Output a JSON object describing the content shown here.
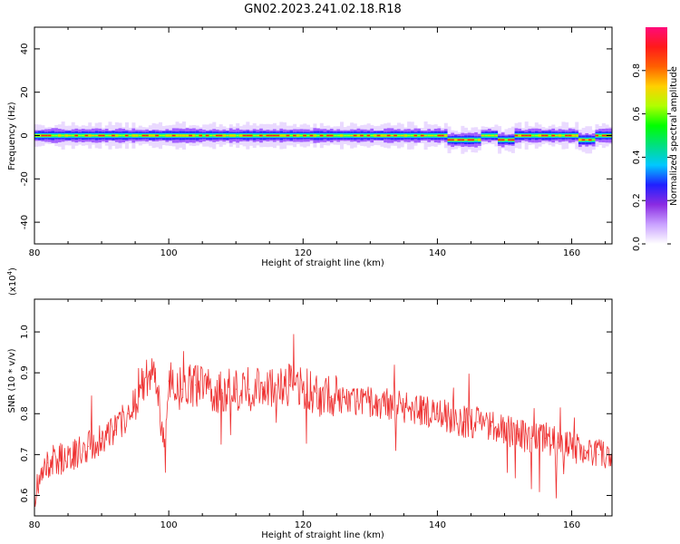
{
  "figure_title": "GN02.2023.241.02.18.R18",
  "chart_data": [
    {
      "type": "heatmap",
      "xlabel": "Height of straight line (km)",
      "ylabel": "Frequency (Hz)",
      "xlim": [
        80,
        166
      ],
      "ylim": [
        -50,
        50
      ],
      "x_ticks": [
        80,
        100,
        120,
        140,
        160
      ],
      "y_ticks": [
        -40,
        -20,
        0,
        20,
        40
      ],
      "colorbar": {
        "label": "Normalized spectral amplitude",
        "range": [
          0.0,
          1.0
        ],
        "ticks": [
          "0.0",
          "0.2",
          "0.4",
          "0.6",
          "0.8"
        ],
        "colormap": [
          "#ffffff",
          "#c9a0ff",
          "#8a2be2",
          "#2020ff",
          "#00c8ff",
          "#00e080",
          "#00ff00",
          "#b0ff00",
          "#ffd000",
          "#ff6000",
          "#ff1a1a",
          "#ff0a7a"
        ]
      },
      "dominant_frequency_hz": 0,
      "notch_segments_hz": [
        {
          "x_start": 141.5,
          "x_end": 146,
          "freq": -2
        },
        {
          "x_start": 149,
          "x_end": 151,
          "freq": -2
        },
        {
          "x_start": 161,
          "x_end": 163,
          "freq": -2
        }
      ]
    },
    {
      "type": "line",
      "xlabel": "Height of straight line (km)",
      "ylabel": "SNR (10 * v/v)",
      "y_multiplier": "(x10",
      "y_multiplier_exp": "4",
      "y_multiplier_close": ")",
      "xlim": [
        80,
        166
      ],
      "ylim": [
        0.55,
        1.08
      ],
      "x_ticks": [
        80,
        100,
        120,
        140,
        160
      ],
      "y_ticks": [
        "0.6",
        "0.7",
        "0.8",
        "0.9",
        "1.0"
      ],
      "series": [
        {
          "color": "#ee3030",
          "x": [
            80,
            82,
            84,
            86,
            88,
            90,
            92,
            94,
            96,
            98,
            99.5,
            100,
            102,
            104,
            106,
            108,
            110,
            112,
            114,
            116,
            118,
            120,
            122,
            124,
            126,
            128,
            130,
            132,
            134,
            136,
            138,
            140,
            142,
            144,
            146,
            148,
            150,
            152,
            154,
            156,
            158,
            160,
            162,
            164,
            166
          ],
          "values": [
            0.6,
            0.68,
            0.69,
            0.7,
            0.72,
            0.74,
            0.76,
            0.8,
            0.87,
            0.9,
            0.7,
            0.88,
            0.86,
            0.87,
            0.86,
            0.85,
            0.86,
            0.86,
            0.86,
            0.87,
            0.87,
            0.86,
            0.85,
            0.84,
            0.84,
            0.83,
            0.83,
            0.82,
            0.82,
            0.81,
            0.81,
            0.8,
            0.79,
            0.78,
            0.78,
            0.77,
            0.76,
            0.75,
            0.74,
            0.74,
            0.73,
            0.72,
            0.71,
            0.7,
            0.68
          ]
        }
      ]
    }
  ]
}
